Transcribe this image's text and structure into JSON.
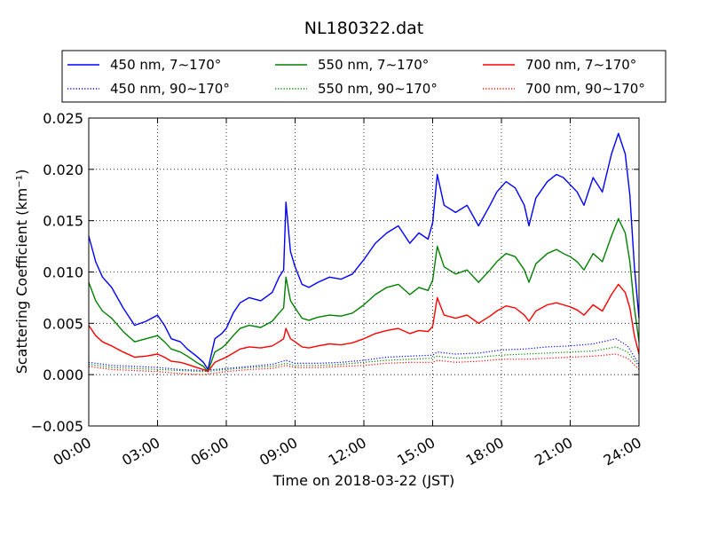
{
  "chart_data": {
    "type": "line",
    "title": "NL180322.dat",
    "xlabel": "Time on 2018-03-22 (JST)",
    "ylabel": "Scattering Coefficient (km⁻¹)",
    "x_unit": "hours",
    "xlim": [
      0,
      24
    ],
    "ylim": [
      -0.005,
      0.025
    ],
    "x_ticks": [
      0,
      3,
      6,
      9,
      12,
      15,
      18,
      21,
      24
    ],
    "x_tick_labels": [
      "00:00",
      "03:00",
      "06:00",
      "09:00",
      "12:00",
      "15:00",
      "18:00",
      "21:00",
      "24:00"
    ],
    "y_ticks": [
      -0.005,
      0.0,
      0.005,
      0.01,
      0.015,
      0.02,
      0.025
    ],
    "y_tick_labels": [
      "−0.005",
      "0.000",
      "0.005",
      "0.010",
      "0.015",
      "0.020",
      "0.025"
    ],
    "grid": true,
    "legend_position": "top",
    "series": [
      {
        "name": "450 nm, 7∼170°",
        "color": "#0000ff",
        "style": "solid",
        "x": [
          0,
          0.3,
          0.6,
          1.0,
          1.5,
          2.0,
          2.5,
          3.0,
          3.3,
          3.6,
          4.0,
          4.3,
          4.7,
          5.0,
          5.2,
          5.5,
          5.8,
          6.0,
          6.3,
          6.6,
          7.0,
          7.5,
          8.0,
          8.3,
          8.5,
          8.6,
          8.8,
          9.0,
          9.3,
          9.6,
          10.0,
          10.5,
          11.0,
          11.5,
          12.0,
          12.5,
          13.0,
          13.5,
          14.0,
          14.4,
          14.8,
          15.0,
          15.2,
          15.5,
          16.0,
          16.5,
          17.0,
          17.5,
          17.8,
          18.2,
          18.6,
          19.0,
          19.2,
          19.5,
          20.0,
          20.4,
          20.7,
          21.0,
          21.3,
          21.6,
          22.0,
          22.4,
          22.8,
          23.1,
          23.4,
          23.6,
          23.8,
          24.0
        ],
        "y": [
          0.0135,
          0.011,
          0.0095,
          0.0085,
          0.0065,
          0.0048,
          0.0052,
          0.0058,
          0.0048,
          0.0035,
          0.0032,
          0.0025,
          0.0018,
          0.0012,
          0.0005,
          0.0035,
          0.004,
          0.0045,
          0.006,
          0.007,
          0.0075,
          0.0072,
          0.008,
          0.0095,
          0.0102,
          0.0168,
          0.012,
          0.0105,
          0.0088,
          0.0085,
          0.009,
          0.0095,
          0.0093,
          0.0098,
          0.0112,
          0.0128,
          0.0138,
          0.0145,
          0.0128,
          0.0138,
          0.0132,
          0.0148,
          0.0195,
          0.0165,
          0.0158,
          0.0165,
          0.0145,
          0.0165,
          0.0178,
          0.0188,
          0.0182,
          0.0165,
          0.0145,
          0.0172,
          0.0188,
          0.0195,
          0.0192,
          0.0185,
          0.0178,
          0.0165,
          0.0192,
          0.0178,
          0.0215,
          0.0235,
          0.0215,
          0.0175,
          0.0105,
          0.0055
        ]
      },
      {
        "name": "550 nm, 7∼170°",
        "color": "#008000",
        "style": "solid",
        "x": [
          0,
          0.3,
          0.6,
          1.0,
          1.5,
          2.0,
          2.5,
          3.0,
          3.3,
          3.6,
          4.0,
          4.3,
          4.7,
          5.0,
          5.2,
          5.5,
          5.8,
          6.0,
          6.3,
          6.6,
          7.0,
          7.5,
          8.0,
          8.3,
          8.5,
          8.6,
          8.8,
          9.0,
          9.3,
          9.6,
          10.0,
          10.5,
          11.0,
          11.5,
          12.0,
          12.5,
          13.0,
          13.5,
          14.0,
          14.4,
          14.8,
          15.0,
          15.2,
          15.5,
          16.0,
          16.5,
          17.0,
          17.5,
          17.8,
          18.2,
          18.6,
          19.0,
          19.2,
          19.5,
          20.0,
          20.4,
          20.7,
          21.0,
          21.3,
          21.6,
          22.0,
          22.4,
          22.8,
          23.1,
          23.4,
          23.6,
          23.8,
          24.0
        ],
        "y": [
          0.009,
          0.0072,
          0.0062,
          0.0055,
          0.0042,
          0.0032,
          0.0035,
          0.0038,
          0.0032,
          0.0025,
          0.0022,
          0.0018,
          0.0012,
          0.0008,
          0.0003,
          0.0022,
          0.0026,
          0.003,
          0.0038,
          0.0045,
          0.0048,
          0.0046,
          0.0052,
          0.006,
          0.0065,
          0.0095,
          0.0072,
          0.0065,
          0.0055,
          0.0053,
          0.0056,
          0.0058,
          0.0057,
          0.006,
          0.0068,
          0.0078,
          0.0085,
          0.0088,
          0.0078,
          0.0085,
          0.0082,
          0.0092,
          0.0125,
          0.0105,
          0.0098,
          0.0102,
          0.009,
          0.0102,
          0.011,
          0.0118,
          0.0115,
          0.0102,
          0.009,
          0.0108,
          0.0118,
          0.0122,
          0.0118,
          0.0115,
          0.011,
          0.0102,
          0.0118,
          0.011,
          0.0135,
          0.0152,
          0.0138,
          0.011,
          0.0065,
          0.0032
        ]
      },
      {
        "name": "700 nm, 7∼170°",
        "color": "#ff0000",
        "style": "solid",
        "x": [
          0,
          0.3,
          0.6,
          1.0,
          1.5,
          2.0,
          2.5,
          3.0,
          3.3,
          3.6,
          4.0,
          4.3,
          4.7,
          5.0,
          5.2,
          5.5,
          5.8,
          6.0,
          6.3,
          6.6,
          7.0,
          7.5,
          8.0,
          8.3,
          8.5,
          8.6,
          8.8,
          9.0,
          9.3,
          9.6,
          10.0,
          10.5,
          11.0,
          11.5,
          12.0,
          12.5,
          13.0,
          13.5,
          14.0,
          14.4,
          14.8,
          15.0,
          15.2,
          15.5,
          16.0,
          16.5,
          17.0,
          17.5,
          17.8,
          18.2,
          18.6,
          19.0,
          19.2,
          19.5,
          20.0,
          20.4,
          20.7,
          21.0,
          21.3,
          21.6,
          22.0,
          22.4,
          22.8,
          23.1,
          23.4,
          23.6,
          23.8,
          24.0
        ],
        "y": [
          0.0048,
          0.0038,
          0.0032,
          0.0028,
          0.0022,
          0.0017,
          0.0018,
          0.002,
          0.0017,
          0.0013,
          0.0012,
          0.001,
          0.0007,
          0.0005,
          0.0003,
          0.0012,
          0.0015,
          0.0017,
          0.0021,
          0.0025,
          0.0027,
          0.0026,
          0.0028,
          0.0032,
          0.0035,
          0.0045,
          0.0035,
          0.0032,
          0.0027,
          0.0026,
          0.0028,
          0.003,
          0.0029,
          0.0031,
          0.0035,
          0.004,
          0.0043,
          0.0045,
          0.004,
          0.0043,
          0.0042,
          0.0047,
          0.0075,
          0.0058,
          0.0055,
          0.0058,
          0.005,
          0.0057,
          0.0062,
          0.0067,
          0.0065,
          0.0058,
          0.0052,
          0.0062,
          0.0068,
          0.007,
          0.0068,
          0.0066,
          0.0063,
          0.0058,
          0.0068,
          0.0062,
          0.0078,
          0.0088,
          0.008,
          0.0065,
          0.0038,
          0.002
        ]
      },
      {
        "name": "450 nm, 90∼170°",
        "color": "#0000ff",
        "style": "dotted",
        "x": [
          0,
          1,
          2,
          3,
          4,
          5,
          6,
          7,
          8,
          8.6,
          9,
          10,
          11,
          12,
          13,
          14,
          15,
          15.2,
          16,
          17,
          18,
          19,
          20,
          21,
          22,
          23,
          23.5,
          24
        ],
        "y": [
          0.0012,
          0.0009,
          0.0008,
          0.0007,
          0.0005,
          0.0004,
          0.0006,
          0.0008,
          0.001,
          0.0014,
          0.0011,
          0.0011,
          0.0012,
          0.0014,
          0.0017,
          0.0018,
          0.0019,
          0.0022,
          0.002,
          0.0021,
          0.0024,
          0.0025,
          0.0027,
          0.0028,
          0.003,
          0.0035,
          0.0028,
          0.001
        ]
      },
      {
        "name": "550 nm, 90∼170°",
        "color": "#008000",
        "style": "dotted",
        "x": [
          0,
          1,
          2,
          3,
          4,
          5,
          6,
          7,
          8,
          8.6,
          9,
          10,
          11,
          12,
          13,
          14,
          15,
          15.2,
          16,
          17,
          18,
          19,
          20,
          21,
          22,
          23,
          23.5,
          24
        ],
        "y": [
          0.001,
          0.0007,
          0.0006,
          0.0005,
          0.0004,
          0.0003,
          0.0005,
          0.0007,
          0.0008,
          0.0011,
          0.0009,
          0.0009,
          0.001,
          0.0012,
          0.0014,
          0.0015,
          0.0016,
          0.0018,
          0.0016,
          0.0017,
          0.0019,
          0.002,
          0.0021,
          0.0022,
          0.0023,
          0.0027,
          0.0022,
          0.0008
        ]
      },
      {
        "name": "700 nm, 90∼170°",
        "color": "#ff0000",
        "style": "dotted",
        "x": [
          0,
          1,
          2,
          3,
          4,
          5,
          6,
          7,
          8,
          8.6,
          9,
          10,
          11,
          12,
          13,
          14,
          15,
          15.2,
          16,
          17,
          18,
          19,
          20,
          21,
          22,
          23,
          23.5,
          24
        ],
        "y": [
          0.0008,
          0.0005,
          0.0004,
          0.0003,
          0.0001,
          0.0,
          0.0003,
          0.0005,
          0.0006,
          0.0009,
          0.0007,
          0.0007,
          0.0008,
          0.0009,
          0.0011,
          0.0012,
          0.0012,
          0.0014,
          0.0012,
          0.0013,
          0.0015,
          0.0015,
          0.0016,
          0.0017,
          0.0018,
          0.002,
          0.0016,
          0.0005
        ]
      }
    ]
  }
}
